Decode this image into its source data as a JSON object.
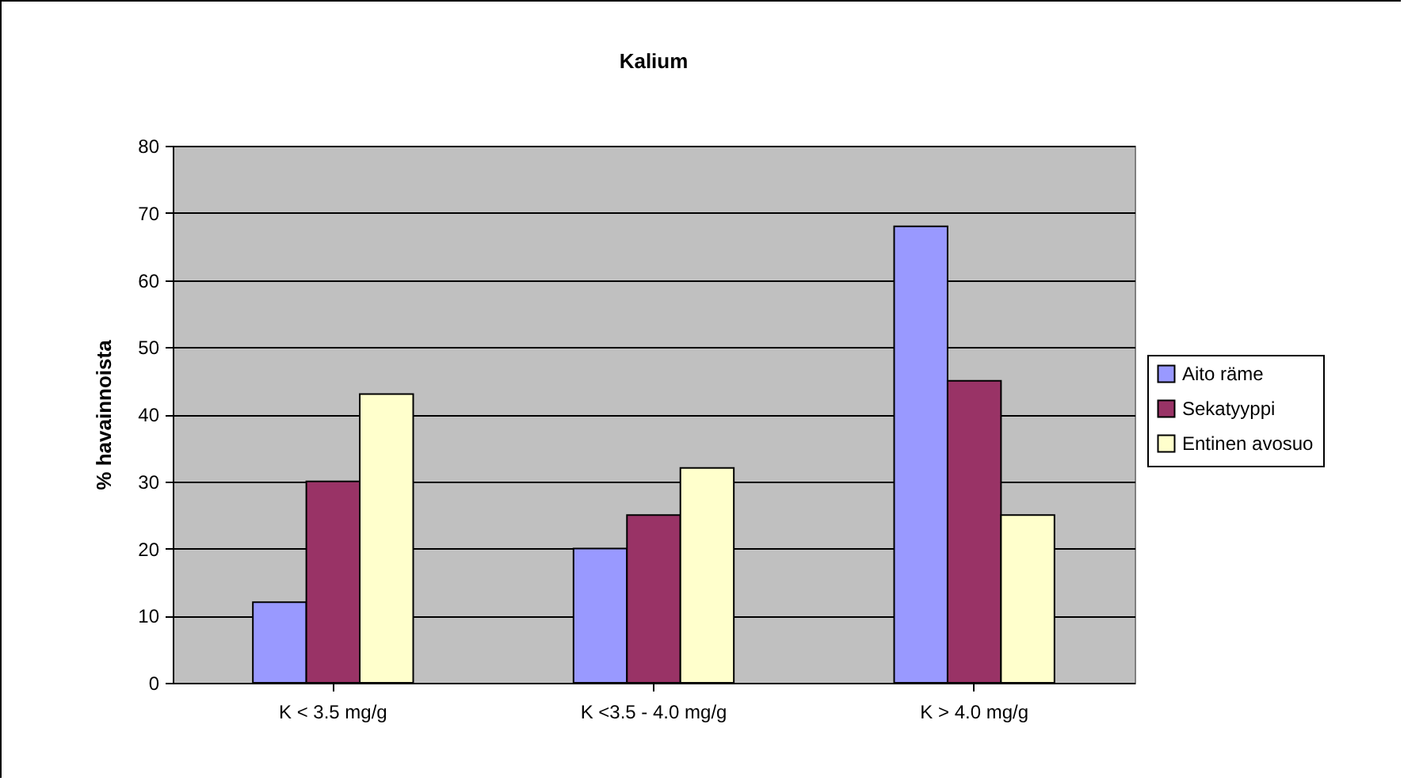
{
  "chart_data": {
    "type": "bar",
    "title": "Kalium",
    "ylabel": "% havainnoista",
    "categories": [
      "K < 3.5 mg/g",
      "K <3.5 - 4.0 mg/g",
      "K > 4.0 mg/g"
    ],
    "series": [
      {
        "name": "Aito räme",
        "color": "#9999ff",
        "values": [
          12,
          20,
          68
        ]
      },
      {
        "name": "Sekatyyppi",
        "color": "#993366",
        "values": [
          30,
          25,
          45
        ]
      },
      {
        "name": "Entinen avosuo",
        "color": "#ffffcc",
        "values": [
          43,
          32,
          25
        ]
      }
    ],
    "ylim": [
      0,
      80
    ],
    "yticks": [
      0,
      10,
      20,
      30,
      40,
      50,
      60,
      70,
      80
    ],
    "grid": "y",
    "legend": "right"
  }
}
